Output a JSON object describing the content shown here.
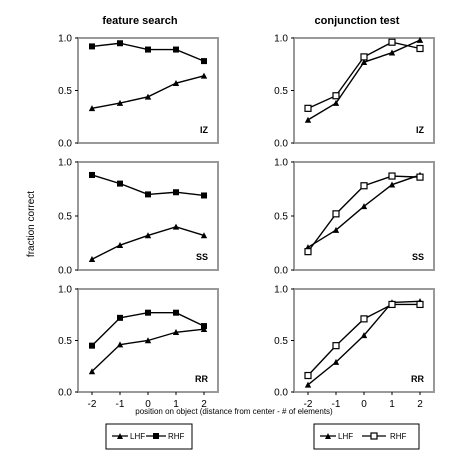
{
  "column_titles": [
    "feature search",
    "conjunction test"
  ],
  "y_axis_label": "fraction correct",
  "x_axis_label": "position on object (distance from center - # of elements)",
  "legend_left": {
    "lhf": "LHF",
    "rhf": "RHF"
  },
  "legend_right": {
    "lhf": "LHF",
    "rhf": "RHF"
  },
  "colors": {
    "panel_border": "#999999",
    "line": "#000000"
  },
  "chart_data": [
    {
      "type": "line",
      "row": 0,
      "col": 0,
      "panel_label": "IZ",
      "x": [
        -2,
        -1,
        0,
        1,
        2
      ],
      "xticks": [
        "-2",
        "-1",
        "0",
        "1",
        "2"
      ],
      "ylim": [
        0,
        1
      ],
      "yticks": [
        "0.0",
        "0.5",
        "1.0"
      ],
      "series": [
        {
          "name": "LHF",
          "marker": "triangle",
          "values": [
            0.33,
            0.38,
            0.44,
            0.57,
            0.64
          ]
        },
        {
          "name": "RHF",
          "marker": "filled-square",
          "values": [
            0.92,
            0.95,
            0.89,
            0.89,
            0.78
          ]
        }
      ]
    },
    {
      "type": "line",
      "row": 0,
      "col": 1,
      "panel_label": "IZ",
      "x": [
        -2,
        -1,
        0,
        1,
        2
      ],
      "xticks": [
        "-2",
        "-1",
        "0",
        "1",
        "2"
      ],
      "ylim": [
        0,
        1
      ],
      "yticks": [
        "0.0",
        "0.5",
        "1.0"
      ],
      "series": [
        {
          "name": "LHF",
          "marker": "triangle",
          "values": [
            0.22,
            0.38,
            0.77,
            0.86,
            0.98
          ]
        },
        {
          "name": "RHF",
          "marker": "open-square",
          "values": [
            0.33,
            0.45,
            0.82,
            0.96,
            0.9
          ]
        }
      ]
    },
    {
      "type": "line",
      "row": 1,
      "col": 0,
      "panel_label": "SS",
      "x": [
        -2,
        -1,
        0,
        1,
        2
      ],
      "xticks": [
        "-2",
        "-1",
        "0",
        "1",
        "2"
      ],
      "ylim": [
        0,
        1
      ],
      "yticks": [
        "0.0",
        "0.5",
        "1.0"
      ],
      "series": [
        {
          "name": "LHF",
          "marker": "triangle",
          "values": [
            0.1,
            0.23,
            0.32,
            0.4,
            0.32
          ]
        },
        {
          "name": "RHF",
          "marker": "filled-square",
          "values": [
            0.88,
            0.8,
            0.7,
            0.72,
            0.69
          ]
        }
      ]
    },
    {
      "type": "line",
      "row": 1,
      "col": 1,
      "panel_label": "SS",
      "x": [
        -2,
        -1,
        0,
        1,
        2
      ],
      "xticks": [
        "-2",
        "-1",
        "0",
        "1",
        "2"
      ],
      "ylim": [
        0,
        1
      ],
      "yticks": [
        "0.0",
        "0.5",
        "1.0"
      ],
      "series": [
        {
          "name": "LHF",
          "marker": "triangle",
          "values": [
            0.21,
            0.37,
            0.59,
            0.79,
            0.88
          ]
        },
        {
          "name": "RHF",
          "marker": "open-square",
          "values": [
            0.17,
            0.52,
            0.78,
            0.87,
            0.86
          ]
        }
      ]
    },
    {
      "type": "line",
      "row": 2,
      "col": 0,
      "panel_label": "RR",
      "x": [
        -2,
        -1,
        0,
        1,
        2
      ],
      "xticks": [
        "-2",
        "-1",
        "0",
        "1",
        "2"
      ],
      "ylim": [
        0,
        1
      ],
      "yticks": [
        "0.0",
        "0.5",
        "1.0"
      ],
      "series": [
        {
          "name": "LHF",
          "marker": "triangle",
          "values": [
            0.2,
            0.46,
            0.5,
            0.58,
            0.61
          ]
        },
        {
          "name": "RHF",
          "marker": "filled-square",
          "values": [
            0.45,
            0.72,
            0.77,
            0.77,
            0.64
          ]
        }
      ]
    },
    {
      "type": "line",
      "row": 2,
      "col": 1,
      "panel_label": "RR",
      "x": [
        -2,
        -1,
        0,
        1,
        2
      ],
      "xticks": [
        "-2",
        "-1",
        "0",
        "1",
        "2"
      ],
      "ylim": [
        0,
        1
      ],
      "yticks": [
        "0.0",
        "0.5",
        "1.0"
      ],
      "series": [
        {
          "name": "LHF",
          "marker": "triangle",
          "values": [
            0.07,
            0.29,
            0.55,
            0.87,
            0.88
          ]
        },
        {
          "name": "RHF",
          "marker": "open-square",
          "values": [
            0.16,
            0.45,
            0.71,
            0.85,
            0.85
          ]
        }
      ]
    }
  ]
}
